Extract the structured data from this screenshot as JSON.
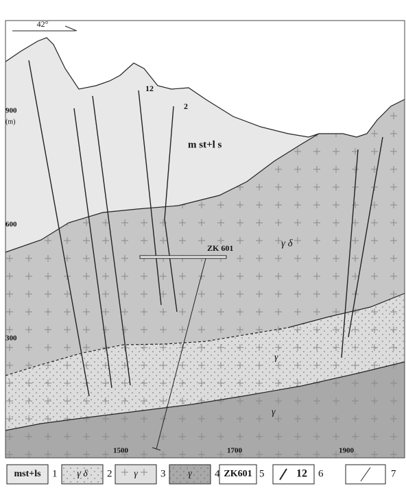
{
  "orientation": "42°",
  "elevation_labels": [
    "900",
    "(m)",
    "600",
    "300"
  ],
  "distance_labels": [
    "1500",
    "1700",
    "1900"
  ],
  "section_labels": {
    "fault_12": "12",
    "fault_2": "2",
    "cover": "m st+l s",
    "granodiorite": "γ δ",
    "granite_upper": "γ",
    "granite_lower": "γ",
    "drill": "ZK 601"
  },
  "legend": [
    {
      "symbol": "mst+ls",
      "number": "1"
    },
    {
      "symbol": "γ δ",
      "number": "2"
    },
    {
      "symbol": "γ",
      "number": "3"
    },
    {
      "symbol": "γ",
      "number": "4"
    },
    {
      "symbol": "ZK601",
      "number": "5"
    },
    {
      "symbol": "12",
      "number": "6"
    },
    {
      "number": "7"
    }
  ]
}
